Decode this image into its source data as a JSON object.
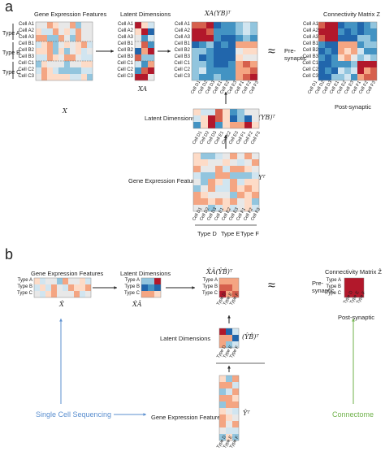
{
  "panel_a": {
    "letter": "a",
    "gene_expr_title": "Gene Expression Features",
    "latent_title": "Latent Dimensions",
    "xa_yb_title": "XA(YB)ᵀ",
    "conn_title": "Connectivity Matrix Z",
    "types": [
      "Type A",
      "Type B",
      "Type C"
    ],
    "cells_rows": [
      "Cell A1",
      "Cell A2",
      "Cell A3",
      "Cell B1",
      "Cell B2",
      "Cell B3",
      "Cell C1",
      "Cell C2",
      "Cell C3"
    ],
    "cells_cols": [
      "Cell D1",
      "Cell D2",
      "Cell D3",
      "Cell E1",
      "Cell E2",
      "Cell E3",
      "Cell F1",
      "Cell F2",
      "Cell F3"
    ],
    "x_label": "X",
    "xa_label": "XA",
    "approx": "≈",
    "pre": "Pre-\nsynaptic",
    "post": "Post-synaptic",
    "latent_dims_lbl": "Latent Dimensions",
    "yb_t": "(YB)ᵀ",
    "gene_expr_lbl": "Gene Expression Features",
    "y_t": "Yᵀ",
    "col_types": [
      "Type D",
      "Type E",
      "Type F"
    ]
  },
  "panel_b": {
    "letter": "b",
    "gene_expr_title": "Gene Expression Features",
    "latent_title": "Latent Dimensions",
    "xhat_title": "X̂Â(ŶB̂)ᵀ",
    "conn_title": "Connectivity Matrix Ẑ",
    "types": [
      "Type A",
      "Type B",
      "Type C"
    ],
    "col_types": [
      "Type D",
      "Type E",
      "Type F"
    ],
    "xhat": "X̂",
    "xhat_a": "X̂Â",
    "approx": "≈",
    "pre": "Pre-\nsynaptic",
    "post": "Post-synaptic",
    "latent_dims_lbl": "Latent Dimensions",
    "yb_t": "(ŶB̂)ᵀ",
    "gene_expr_lbl": "Gene Expression Features",
    "y_t": "Ŷᵀ",
    "single_cell": "Single Cell Sequencing",
    "connectome": "Connectome"
  }
}
